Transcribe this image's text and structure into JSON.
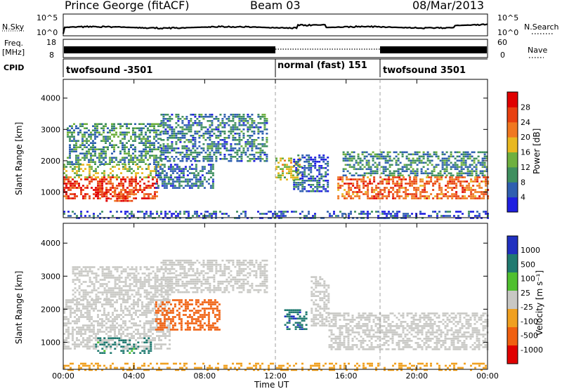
{
  "header": {
    "station": "Prince George (fitACF)",
    "beam": "Beam 03",
    "date": "08/Mar/2013"
  },
  "top_panels": {
    "nsky_label": "N.Sky",
    "nsky_ticks": [
      "10^5",
      "10^0"
    ],
    "nsearch_label": "N.Search",
    "nsearch_ticks": [
      "10^5",
      "10^0"
    ],
    "freq_label_1": "Freq.",
    "freq_label_2": "[MHz]",
    "freq_ticks": [
      "18",
      "8"
    ],
    "nave_label": "Nave",
    "nave_ticks": [
      "60",
      "0"
    ],
    "cpid_label": "CPID",
    "cpid_segments": [
      {
        "label": "twofsound -3501",
        "start_hour": 0,
        "end_hour": 12,
        "bar": "solid"
      },
      {
        "label": "normal (fast) 151",
        "start_hour": 12,
        "end_hour": 18,
        "bar": "dotted"
      },
      {
        "label": "twofsound 3501",
        "start_hour": 18,
        "end_hour": 24,
        "bar": "solid"
      }
    ]
  },
  "axes": {
    "xlabel": "Time UT",
    "xticks": [
      "00:00",
      "04:00",
      "08:00",
      "12:00",
      "16:00",
      "20:00",
      "00:00"
    ],
    "x_range_hours": [
      0,
      24
    ],
    "ylabel_power": "Slant Range [km]",
    "ylabel_velocity": "Slant Range [km]",
    "yticks": [
      "4000",
      "3000",
      "2000",
      "1000"
    ],
    "y_range_km": [
      180,
      4600
    ]
  },
  "colors": {
    "power_scale": [
      "#1f1fe0",
      "#2f5fb0",
      "#3f8f5f",
      "#6fb03f",
      "#e8b820",
      "#f07820",
      "#e84010",
      "#e00000"
    ],
    "velocity_scale": [
      "#2030c0",
      "#207a70",
      "#50c030",
      "#c8c8c4",
      "#f0a020",
      "#f06010",
      "#e00000"
    ],
    "ground_scatter": "#c8c8c4"
  },
  "chart_data": [
    {
      "type": "heatmap",
      "title": "Power",
      "colorbar_label": "Power [dB]",
      "colorbar_ticks": [
        "28",
        "24",
        "20",
        "16",
        "12",
        "8",
        "4"
      ],
      "colorbar_range": [
        0,
        32
      ],
      "regions": [
        {
          "t0": 0.0,
          "t1": 5.3,
          "r0": 800,
          "r1": 1500,
          "value": 27
        },
        {
          "t0": 0.0,
          "t1": 5.5,
          "r0": 1450,
          "r1": 1900,
          "value": 15
        },
        {
          "t0": 0.2,
          "t1": 5.5,
          "r0": 1900,
          "r1": 3200,
          "value": 10
        },
        {
          "t0": 1.8,
          "t1": 4.0,
          "r0": 700,
          "r1": 1150,
          "value": 25
        },
        {
          "t0": 5.2,
          "t1": 8.5,
          "r0": 1100,
          "r1": 1900,
          "value": 7
        },
        {
          "t0": 5.5,
          "t1": 11.5,
          "r0": 2000,
          "r1": 3500,
          "value": 8
        },
        {
          "t0": 12.0,
          "t1": 13.5,
          "r0": 1400,
          "r1": 2100,
          "value": 16
        },
        {
          "t0": 13.0,
          "t1": 15.0,
          "r0": 1000,
          "r1": 2200,
          "value": 6
        },
        {
          "t0": 15.5,
          "t1": 24.0,
          "r0": 800,
          "r1": 1500,
          "value": 24
        },
        {
          "t0": 15.8,
          "t1": 24.0,
          "r0": 1500,
          "r1": 2300,
          "value": 9
        },
        {
          "t0": 0.0,
          "t1": 24.0,
          "r0": 180,
          "r1": 400,
          "value": 5
        }
      ]
    },
    {
      "type": "heatmap",
      "title": "Velocity",
      "colorbar_label": "Velocity [m s⁻¹]",
      "colorbar_ticks": [
        "1000",
        "500",
        "100",
        "25",
        "-25",
        "-100",
        "-500",
        "-1000"
      ],
      "colorbar_range": [
        -1000,
        1000
      ],
      "regions": [
        {
          "t0": 0.0,
          "t1": 6.0,
          "r0": 800,
          "r1": 2300,
          "value": 0,
          "ground_scatter": true
        },
        {
          "t0": 0.5,
          "t1": 6.0,
          "r0": 2300,
          "r1": 3300,
          "value": 0,
          "ground_scatter": true
        },
        {
          "t0": 1.8,
          "t1": 5.0,
          "r0": 700,
          "r1": 1150,
          "value": 150
        },
        {
          "t0": 5.2,
          "t1": 8.8,
          "r0": 1400,
          "r1": 2300,
          "value": -300
        },
        {
          "t0": 5.5,
          "t1": 11.5,
          "r0": 2500,
          "r1": 3500,
          "value": 0,
          "ground_scatter": true
        },
        {
          "t0": 12.5,
          "t1": 13.8,
          "r0": 1400,
          "r1": 2000,
          "value": 400
        },
        {
          "t0": 14.0,
          "t1": 15.0,
          "r0": 1500,
          "r1": 3000,
          "value": 0,
          "ground_scatter": true
        },
        {
          "t0": 15.0,
          "t1": 24.0,
          "r0": 800,
          "r1": 1900,
          "value": 0,
          "ground_scatter": true
        },
        {
          "t0": 0.0,
          "t1": 24.0,
          "r0": 180,
          "r1": 380,
          "value": -60
        }
      ]
    }
  ]
}
